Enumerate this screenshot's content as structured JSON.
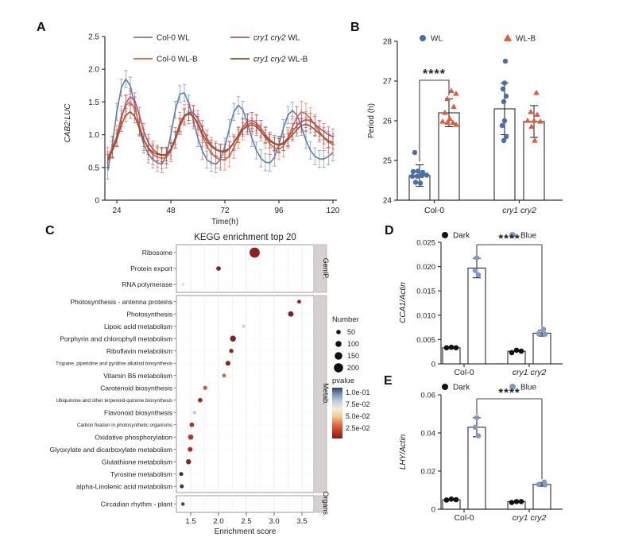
{
  "panels": {
    "a": "A",
    "b": "B",
    "c": "C",
    "d": "D",
    "e": "E"
  },
  "chart_data": [
    {
      "id": "panel-a",
      "type": "line",
      "xlabel": "Time(h)",
      "ylabel": "CAB2:LUC",
      "xticks": [
        24,
        48,
        72,
        96,
        120
      ],
      "yticks": [
        0,
        0.5,
        1,
        1.5,
        2,
        2.5
      ],
      "yticklabels": [
        "0",
        "0.5",
        "1.0",
        "1.5",
        "2.0",
        "2.5"
      ],
      "xlim": [
        20,
        120
      ],
      "ylim": [
        0,
        2.5
      ],
      "x_hours": [
        20,
        22,
        24,
        26,
        28,
        30,
        32,
        34,
        36,
        38,
        40,
        42,
        44,
        46,
        48,
        50,
        52,
        54,
        56,
        58,
        60,
        62,
        64,
        66,
        68,
        70,
        72,
        74,
        76,
        78,
        80,
        82,
        84,
        86,
        88,
        90,
        92,
        94,
        96,
        98,
        100,
        102,
        104,
        106,
        108,
        110,
        112,
        114,
        116,
        118,
        120
      ],
      "series": [
        {
          "label": {
            "italic": "",
            "text": "Col-0 WL"
          },
          "color": "#5b7fb2",
          "err": 0.13,
          "y": [
            0.45,
            0.85,
            1.35,
            1.72,
            1.85,
            1.75,
            1.45,
            1.1,
            0.85,
            0.7,
            0.62,
            0.57,
            0.55,
            0.68,
            1.0,
            1.38,
            1.62,
            1.64,
            1.48,
            1.22,
            0.95,
            0.75,
            0.62,
            0.57,
            0.55,
            0.62,
            0.82,
            1.1,
            1.35,
            1.45,
            1.38,
            1.18,
            0.95,
            0.76,
            0.64,
            0.58,
            0.57,
            0.65,
            0.85,
            1.1,
            1.3,
            1.37,
            1.3,
            1.12,
            0.92,
            0.76,
            0.67,
            0.63,
            0.63,
            0.67,
            0.73
          ]
        },
        {
          "label": {
            "italic": "",
            "text": "Col-0 WL-B"
          },
          "color": "#e5613e",
          "err": 0.16,
          "y": [
            0.65,
            0.8,
            0.98,
            1.28,
            1.45,
            1.5,
            1.4,
            1.15,
            0.92,
            0.78,
            0.7,
            0.66,
            0.64,
            0.65,
            0.75,
            0.95,
            1.18,
            1.3,
            1.33,
            1.28,
            1.15,
            0.98,
            0.83,
            0.72,
            0.65,
            0.62,
            0.62,
            0.67,
            0.8,
            0.95,
            1.08,
            1.16,
            1.18,
            1.15,
            1.06,
            0.95,
            0.86,
            0.8,
            0.78,
            0.82,
            0.95,
            1.12,
            1.27,
            1.35,
            1.32,
            1.25,
            1.15,
            1.05,
            0.95,
            0.89,
            0.85
          ]
        },
        {
          "label": {
            "italic": "cry1 cry2",
            "text": " WL"
          },
          "color": "#c44b63",
          "err": 0.12,
          "y": [
            0.62,
            0.78,
            0.95,
            1.25,
            1.48,
            1.58,
            1.52,
            1.3,
            1.05,
            0.88,
            0.78,
            0.72,
            0.69,
            0.68,
            0.75,
            0.92,
            1.12,
            1.28,
            1.34,
            1.33,
            1.25,
            1.1,
            0.95,
            0.84,
            0.78,
            0.74,
            0.73,
            0.78,
            0.88,
            1.0,
            1.12,
            1.2,
            1.22,
            1.18,
            1.1,
            1.0,
            0.92,
            0.87,
            0.85,
            0.88,
            0.95,
            1.05,
            1.14,
            1.2,
            1.23,
            1.21,
            1.16,
            1.1,
            1.05,
            1.0,
            0.97
          ]
        },
        {
          "label": {
            "italic": "cry1 cry2",
            "text": " WL-B"
          },
          "color": "#96502f",
          "err": 0.1,
          "y": [
            0.6,
            0.75,
            0.92,
            1.15,
            1.3,
            1.35,
            1.28,
            1.1,
            0.92,
            0.8,
            0.73,
            0.7,
            0.69,
            0.7,
            0.78,
            0.95,
            1.15,
            1.28,
            1.32,
            1.28,
            1.18,
            1.02,
            0.9,
            0.82,
            0.77,
            0.75,
            0.75,
            0.79,
            0.88,
            0.98,
            1.08,
            1.13,
            1.15,
            1.12,
            1.05,
            0.97,
            0.9,
            0.86,
            0.84,
            0.86,
            0.92,
            1.0,
            1.08,
            1.14,
            1.16,
            1.13,
            1.08,
            1.02,
            0.96,
            0.91,
            0.88
          ]
        }
      ]
    },
    {
      "id": "panel-b",
      "type": "bar-scatter",
      "ylabel": "Period (h)",
      "ylim": [
        24,
        28
      ],
      "yticks": [
        24,
        25,
        26,
        27,
        28
      ],
      "yticklabels": [
        "24",
        "25",
        "26",
        "27",
        "28"
      ],
      "legend": [
        {
          "label": {
            "italic": "",
            "text": "WL"
          },
          "marker": "circle",
          "color": "#4a6fa8"
        },
        {
          "label": {
            "italic": "",
            "text": "WL-B"
          },
          "marker": "triangle",
          "color": "#e05a3a"
        }
      ],
      "groups": [
        {
          "italic": "",
          "text": "Col-0"
        },
        {
          "italic": "cry1 cry2",
          "text": ""
        }
      ],
      "bars": [
        {
          "series": 0,
          "mean": 24.62,
          "sd": 0.27,
          "points": [
            [
              -6,
              25.2
            ],
            [
              -8,
              24.72
            ],
            [
              -2,
              24.73
            ],
            [
              4,
              24.7
            ],
            [
              -9,
              24.6
            ],
            [
              -3,
              24.6
            ],
            [
              3,
              24.62
            ],
            [
              9,
              24.63
            ],
            [
              -5,
              24.45
            ],
            [
              1,
              24.43
            ]
          ]
        },
        {
          "series": 1,
          "mean": 26.2,
          "sd": 0.35,
          "points": [
            [
              3,
              26.75
            ],
            [
              9,
              26.68
            ],
            [
              -2,
              26.55
            ],
            [
              6,
              26.35
            ],
            [
              -5,
              26.2
            ],
            [
              1,
              26.05
            ],
            [
              -8,
              25.98
            ],
            [
              -2,
              25.95
            ],
            [
              5,
              25.95
            ],
            [
              9,
              25.9
            ]
          ]
        },
        {
          "series": 0,
          "mean": 26.3,
          "sd": 0.65,
          "points": [
            [
              1,
              27.5
            ],
            [
              0,
              26.95
            ],
            [
              -2,
              26.8
            ],
            [
              2,
              26.62
            ],
            [
              -1,
              26.48
            ],
            [
              0,
              26.0
            ],
            [
              -3,
              25.88
            ],
            [
              2,
              25.6
            ],
            [
              -1,
              25.5
            ]
          ]
        },
        {
          "series": 1,
          "mean": 25.98,
          "sd": 0.4,
          "points": [
            [
              3,
              26.7
            ],
            [
              -4,
              26.22
            ],
            [
              4,
              26.15
            ],
            [
              -8,
              26.0
            ],
            [
              0,
              26.0
            ],
            [
              8,
              25.98
            ],
            [
              -3,
              25.85
            ],
            [
              1,
              25.5
            ]
          ]
        }
      ],
      "significance": {
        "label": "****",
        "bars": [
          0,
          1
        ]
      }
    },
    {
      "id": "panel-c",
      "type": "dotplot",
      "title": "KEGG enrichment top 20",
      "xlabel": "Enrichment score",
      "xticks": [
        1.5,
        2,
        2.5,
        3,
        3.5
      ],
      "xticklabels": [
        "1.5",
        "2.0",
        "2.5",
        "3.0",
        "3.5"
      ],
      "facets": [
        {
          "label": "GenIP.",
          "rows": [
            {
              "label": "Ribosome",
              "score": 2.65,
              "number": 230,
              "color": "#8c2320"
            },
            {
              "label": "Protein export",
              "score": 2.0,
              "number": 55,
              "color": "#8c2320"
            },
            {
              "label": "RNA polymerase",
              "score": 1.36,
              "number": 20,
              "color": "#dde6ee"
            }
          ]
        },
        {
          "label": "Metab.",
          "rows": [
            {
              "label": "Photosynthesis - antenna proteins",
              "score": 3.45,
              "number": 30,
              "color": "#8c2320"
            },
            {
              "label": "Photosynthesis",
              "score": 3.3,
              "number": 80,
              "color": "#7c1d21"
            },
            {
              "label": "Lipoic acid metabolism",
              "score": 2.45,
              "number": 15,
              "color": "#c9d2da"
            },
            {
              "label": "Porphyrin and chlorophyll metabolism",
              "score": 2.26,
              "number": 95,
              "color": "#7e1f22"
            },
            {
              "label": "Riboflavin metabolism",
              "score": 2.23,
              "number": 45,
              "color": "#8c2822"
            },
            {
              "label": "Tropane, piperidine and pyridine alkaloid biosynthesis",
              "score": 2.17,
              "number": 60,
              "color": "#7e2320"
            },
            {
              "label": "Vitamin B6 metabolism",
              "score": 2.1,
              "number": 30,
              "color": "#c96a4a"
            },
            {
              "label": "Carotenoid biosynthesis",
              "score": 1.76,
              "number": 40,
              "color": "#c55b40"
            },
            {
              "label": "Ubiquinone and other terpenoid-quinone biosynthesis",
              "score": 1.67,
              "number": 55,
              "color": "#a72c24"
            },
            {
              "label": "Flavonoid biosynthesis",
              "score": 1.57,
              "number": 25,
              "color": "#b9cbdc"
            },
            {
              "label": "Carbon fixation in photosynthetic organisms",
              "score": 1.52,
              "number": 55,
              "color": "#b03227"
            },
            {
              "label": "Oxidative phosphorylation",
              "score": 1.5,
              "number": 75,
              "color": "#b23227"
            },
            {
              "label": "Glyoxylate and dicarboxylate metabolism",
              "score": 1.49,
              "number": 60,
              "color": "#ad2d24"
            },
            {
              "label": "Glutathione metabolism",
              "score": 1.46,
              "number": 70,
              "color": "#8c2320"
            },
            {
              "label": "Tyrosine metabolism",
              "score": 1.33,
              "number": 35,
              "color": "#27355c"
            },
            {
              "label": "alpha-Linolenic acid metabolism",
              "score": 1.34,
              "number": 35,
              "color": "#27355c"
            }
          ]
        },
        {
          "label": "Organs.",
          "rows": [
            {
              "label": "Circadian rhythm - plant",
              "score": 1.36,
              "number": 25,
              "color": "#3d4f66"
            }
          ]
        }
      ],
      "size_legend": {
        "title": "Number",
        "sizes": [
          50,
          100,
          150,
          200
        ]
      },
      "color_legend": {
        "title": "pvalue",
        "labels": [
          "1.0e-01",
          "7.5e-02",
          "5.0e-02",
          "2.5e-02"
        ],
        "gradient": [
          "#32406e",
          "#7d9cc0",
          "#c6d4e2",
          "#f4ecd9",
          "#f3c88e",
          "#e2714b",
          "#c03a27",
          "#871a1c"
        ]
      }
    },
    {
      "id": "panel-d",
      "type": "bar-scatter",
      "ylabel": "CCA1/Actin",
      "ylim": [
        0,
        0.025
      ],
      "yticks": [
        0,
        0.005,
        0.01,
        0.015,
        0.02,
        0.025
      ],
      "yticklabels": [
        "0",
        "0.005",
        "0.010",
        "0.015",
        "0.020",
        "0.025"
      ],
      "legend": [
        {
          "label": {
            "italic": "",
            "text": "Dark"
          },
          "marker": "circle",
          "color": "#111111"
        },
        {
          "label": {
            "italic": "",
            "text": "Blue"
          },
          "marker": "circle",
          "color": "#8199c4"
        }
      ],
      "groups": [
        {
          "italic": "",
          "text": "Col-0"
        },
        {
          "italic": "cry1 cry2",
          "text": ""
        }
      ],
      "bars": [
        {
          "series": 0,
          "mean": 0.0033,
          "sd": 0,
          "points": [
            [
              -6,
              0.0033
            ],
            [
              0,
              0.0034
            ],
            [
              6,
              0.0033
            ]
          ]
        },
        {
          "series": 1,
          "mean": 0.0197,
          "sd": 0.002,
          "points": [
            [
              0,
              0.0218
            ],
            [
              -2,
              0.0192
            ],
            [
              2,
              0.0183
            ]
          ]
        },
        {
          "series": 0,
          "mean": 0.0026,
          "sd": 0,
          "points": [
            [
              -6,
              0.0023
            ],
            [
              0,
              0.0028
            ],
            [
              6,
              0.0026
            ]
          ]
        },
        {
          "series": 1,
          "mean": 0.0063,
          "sd": 0.0006,
          "points": [
            [
              2,
              0.0071
            ],
            [
              -4,
              0.0062
            ],
            [
              4,
              0.0061
            ]
          ]
        }
      ],
      "significance": {
        "label": "****",
        "bars": [
          1,
          3
        ]
      }
    },
    {
      "id": "panel-e",
      "type": "bar-scatter",
      "ylabel": "LHY/Actin",
      "ylim": [
        0,
        0.06
      ],
      "yticks": [
        0,
        0.02,
        0.04,
        0.06
      ],
      "yticklabels": [
        "0",
        "0.02",
        "0.04",
        "0.06"
      ],
      "legend": [
        {
          "label": {
            "italic": "",
            "text": "Dark"
          },
          "marker": "circle",
          "color": "#111111"
        },
        {
          "label": {
            "italic": "",
            "text": "Blue"
          },
          "marker": "circle",
          "color": "#8199c4"
        }
      ],
      "groups": [
        {
          "italic": "",
          "text": "Col-0"
        },
        {
          "italic": "cry1 cry2",
          "text": ""
        }
      ],
      "bars": [
        {
          "series": 0,
          "mean": 0.005,
          "sd": 0,
          "points": [
            [
              -6,
              0.0048
            ],
            [
              0,
              0.0053
            ],
            [
              6,
              0.005
            ]
          ]
        },
        {
          "series": 1,
          "mean": 0.043,
          "sd": 0.005,
          "points": [
            [
              0,
              0.048
            ],
            [
              -2,
              0.043
            ],
            [
              2,
              0.0385
            ]
          ]
        },
        {
          "series": 0,
          "mean": 0.004,
          "sd": 0,
          "points": [
            [
              -6,
              0.0035
            ],
            [
              0,
              0.004
            ],
            [
              6,
              0.004
            ]
          ]
        },
        {
          "series": 1,
          "mean": 0.013,
          "sd": 0.001,
          "points": [
            [
              3,
              0.0142
            ],
            [
              -4,
              0.013
            ],
            [
              4,
              0.0128
            ]
          ]
        }
      ],
      "significance": {
        "label": "****",
        "bars": [
          1,
          3
        ]
      }
    }
  ]
}
